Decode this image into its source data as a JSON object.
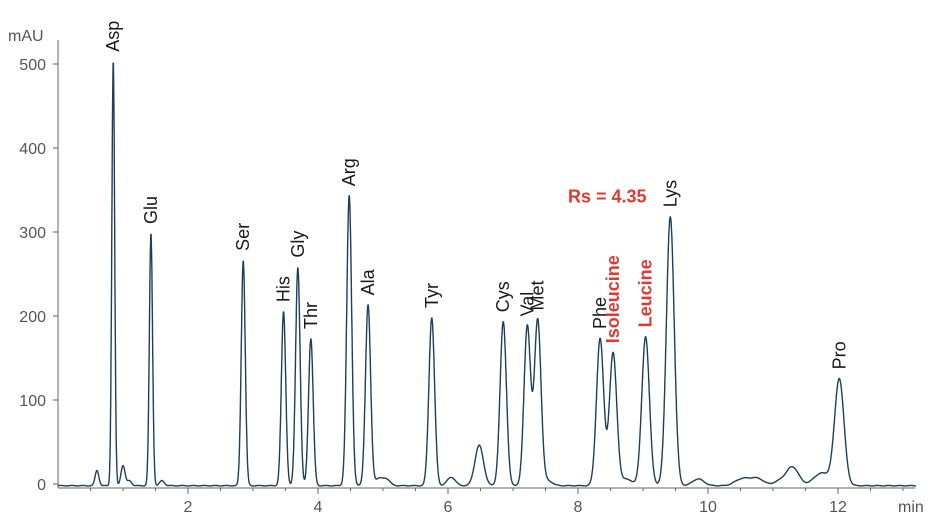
{
  "chart_data": {
    "type": "line",
    "xlabel": "min",
    "ylabel": "mAU",
    "xlim": [
      0,
      13.2
    ],
    "ylim": [
      -10,
      535
    ],
    "x_ticks": [
      2,
      4,
      6,
      8,
      10,
      12
    ],
    "y_ticks": [
      0,
      100,
      200,
      300,
      400,
      500
    ],
    "grid": false,
    "line_color": "#1d3f5c",
    "highlight_color": "#e03a2f",
    "peaks": [
      {
        "label": "Asp",
        "rt": 0.85,
        "height": 505,
        "highlight": false
      },
      {
        "label": "Glu",
        "rt": 1.43,
        "height": 300,
        "highlight": false
      },
      {
        "label": "Ser",
        "rt": 2.85,
        "height": 268,
        "highlight": false
      },
      {
        "label": "His",
        "rt": 3.47,
        "height": 207,
        "highlight": false
      },
      {
        "label": "Gly",
        "rt": 3.69,
        "height": 260,
        "highlight": false
      },
      {
        "label": "Thr",
        "rt": 3.89,
        "height": 175,
        "highlight": false
      },
      {
        "label": "Arg",
        "rt": 4.48,
        "height": 345,
        "highlight": false
      },
      {
        "label": "Ala",
        "rt": 4.77,
        "height": 215,
        "highlight": false
      },
      {
        "label": "Tyr",
        "rt": 5.75,
        "height": 200,
        "highlight": false
      },
      {
        "label": "Cys",
        "rt": 6.85,
        "height": 195,
        "highlight": false
      },
      {
        "label": "Val",
        "rt": 7.22,
        "height": 190,
        "highlight": false
      },
      {
        "label": "Met",
        "rt": 7.38,
        "height": 197,
        "highlight": false
      },
      {
        "label": "Phe",
        "rt": 8.34,
        "height": 175,
        "highlight": false
      },
      {
        "label": "Isoleucine",
        "rt": 8.54,
        "height": 158,
        "highlight": true
      },
      {
        "label": "Leucine",
        "rt": 9.04,
        "height": 177,
        "highlight": true
      },
      {
        "label": "Lys",
        "rt": 9.42,
        "height": 320,
        "highlight": false
      },
      {
        "label": "Pro",
        "rt": 12.02,
        "height": 127,
        "highlight": false
      }
    ],
    "minor_peaks": [
      {
        "rt": 0.6,
        "height": 18
      },
      {
        "rt": 1.0,
        "height": 24
      },
      {
        "rt": 1.1,
        "height": 6
      },
      {
        "rt": 1.6,
        "height": 6
      },
      {
        "rt": 4.93,
        "height": 8
      },
      {
        "rt": 5.05,
        "height": 8
      },
      {
        "rt": 6.05,
        "height": 10
      },
      {
        "rt": 6.48,
        "height": 48
      },
      {
        "rt": 7.53,
        "height": 6
      },
      {
        "rt": 8.75,
        "height": 8
      },
      {
        "rt": 9.85,
        "height": 8
      },
      {
        "rt": 10.47,
        "height": 5
      },
      {
        "rt": 10.6,
        "height": 6
      },
      {
        "rt": 10.77,
        "height": 8
      },
      {
        "rt": 11.1,
        "height": 5
      },
      {
        "rt": 11.3,
        "height": 22
      },
      {
        "rt": 11.68,
        "height": 8
      },
      {
        "rt": 11.8,
        "height": 10
      }
    ],
    "annotations": [
      {
        "text": "Rs = 4.35",
        "x": 8.45,
        "y": 335
      }
    ]
  }
}
